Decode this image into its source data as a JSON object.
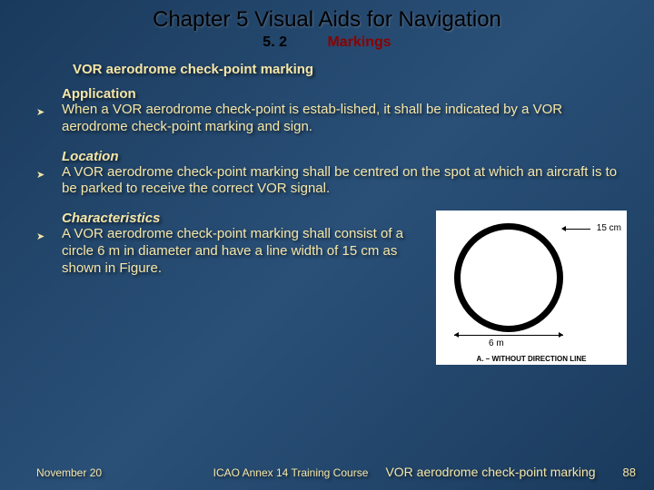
{
  "chapter_title": "Chapter 5  Visual Aids for Navigation",
  "section_num": "5. 2",
  "section_label": "Markings",
  "subtitle": "VOR aerodrome check-point marking",
  "sections": {
    "application": {
      "head": "Application",
      "text": "When a VOR aerodrome check-point is estab-lished, it shall be indicated by a VOR aerodrome check-point marking and sign."
    },
    "location": {
      "head": "Location",
      "text": "A VOR aerodrome check-point marking shall be centred on the spot at which an aircraft is to be parked to receive the correct VOR signal."
    },
    "characteristics": {
      "head": "Characteristics",
      "text": "A VOR aerodrome check-point marking shall consist of a circle 6 m in diameter and have a line width of 15 cm as shown in Figure."
    }
  },
  "figure": {
    "dim_15": "15 cm",
    "dim_6": "6 m",
    "caption": "A. – WITHOUT DIRECTION LINE"
  },
  "footer": {
    "date": "November 20",
    "course": "ICAO Annex 14 Training Course",
    "caption": "VOR aerodrome check-point marking",
    "page": "88"
  }
}
